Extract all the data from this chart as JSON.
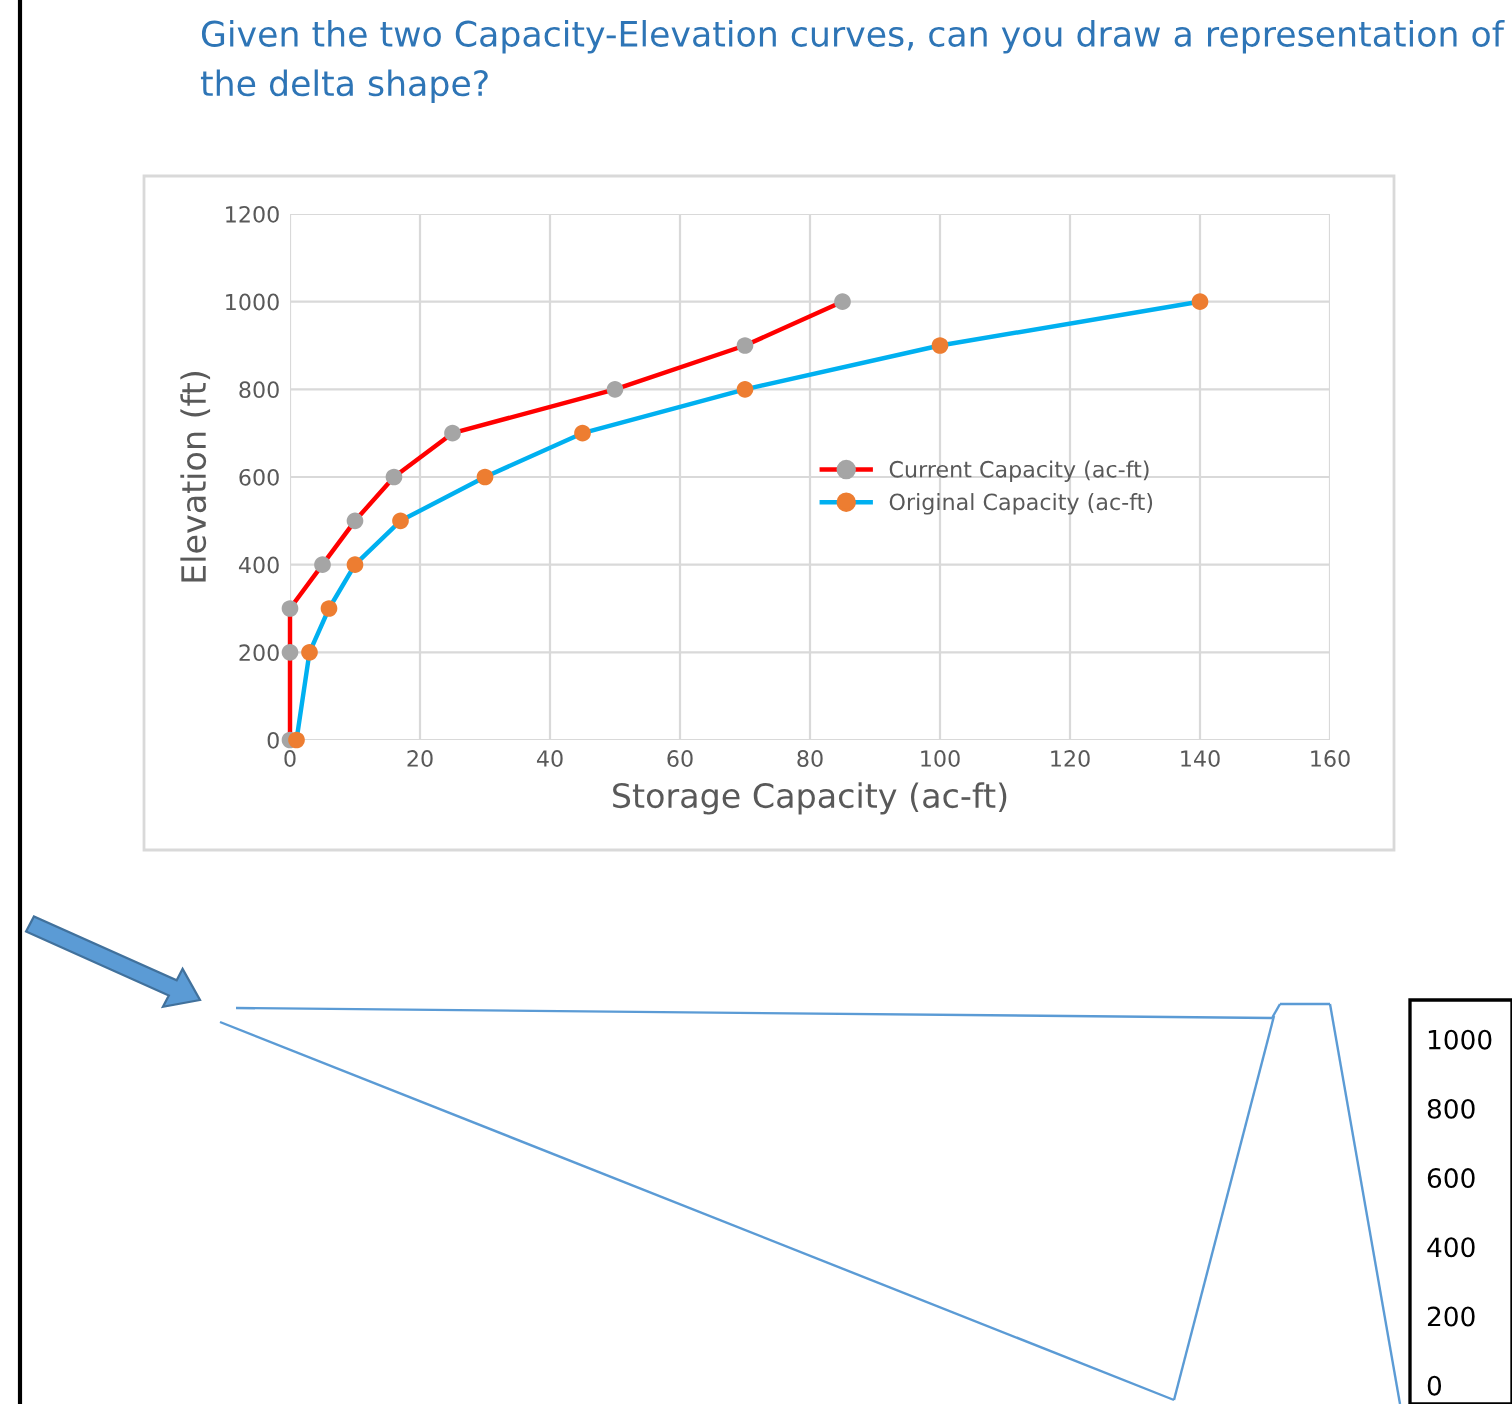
{
  "chart_data": {
    "type": "line",
    "title": "Given the two Capacity-Elevation curves, can you draw a representation of the delta shape?",
    "xlabel": "Storage Capacity (ac-ft)",
    "ylabel": "Elevation (ft)",
    "series": [
      {
        "name": "Current Capacity (ac-ft)",
        "color": "#ff0000",
        "colors": [
          "#a5a5a5",
          "#a5a5a5",
          "#a5a5a5",
          "#a5a5a5",
          "#a5a5a5",
          "#a5a5a5",
          "#a5a5a5",
          "#a5a5a5",
          "#a5a5a5",
          "#a5a5a5"
        ],
        "x": [
          0,
          0,
          0,
          5,
          10,
          16,
          25,
          50,
          70,
          85
        ],
        "values": [
          0,
          200,
          300,
          400,
          500,
          600,
          700,
          800,
          900,
          1000
        ]
      },
      {
        "name": "Original Capacity (ac-ft)",
        "color": "#00b0f0",
        "colors": [
          "#ed7d31",
          "#ed7d31",
          "#ed7d31",
          "#ed7d31",
          "#ed7d31",
          "#ed7d31",
          "#ed7d31",
          "#ed7d31",
          "#ed7d31",
          "#ed7d31"
        ],
        "x": [
          1,
          3,
          6,
          10,
          17,
          30,
          45,
          70,
          100,
          140
        ],
        "values": [
          0,
          200,
          300,
          400,
          500,
          600,
          700,
          800,
          900,
          1000
        ]
      }
    ],
    "xlim": [
      0,
      160
    ],
    "xticks": [
      0,
      20,
      40,
      60,
      80,
      100,
      120,
      140,
      160
    ],
    "ylim": [
      0,
      1200
    ],
    "yticks": [
      0,
      200,
      400,
      600,
      800,
      1000,
      1200
    ],
    "grid": true,
    "legend": "center right",
    "marker": "circle",
    "line_style": "solid",
    "annotations": [
      "1000",
      "800",
      "600",
      "400",
      "200",
      "0"
    ]
  }
}
